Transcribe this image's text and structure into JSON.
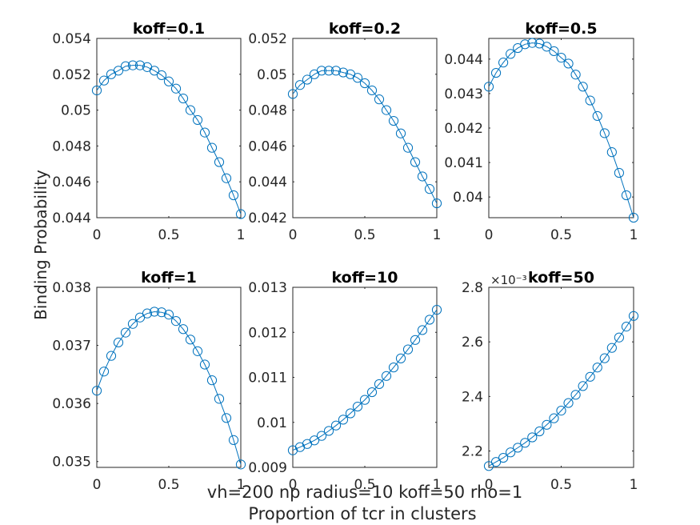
{
  "figure": {
    "ylabel": "Binding Probability",
    "xlabel_line1": "vh=200 np radius=10 koff=50 rho=1",
    "xlabel_line2": "Proportion of tcr in clusters"
  },
  "colors": {
    "series": "#0072BD",
    "marker": "#0072BD",
    "axes": "#262626"
  },
  "chart_data": [
    {
      "type": "line",
      "title": "koff=0.1",
      "xlim": [
        0,
        1
      ],
      "ylim": [
        0.044,
        0.054
      ],
      "xticks": [
        0,
        0.5,
        1
      ],
      "xtick_labels": [
        "0",
        "0.5",
        "1"
      ],
      "yticks": [
        0.044,
        0.046,
        0.048,
        0.05,
        0.052,
        0.054
      ],
      "ytick_labels": [
        "0.044",
        "0.046",
        "0.048",
        "0.05",
        "0.052",
        "0.054"
      ],
      "exponent_label": "",
      "x": [
        0,
        0.05,
        0.1,
        0.15,
        0.2,
        0.25,
        0.3,
        0.35,
        0.4,
        0.45,
        0.5,
        0.55,
        0.6,
        0.65,
        0.7,
        0.75,
        0.8,
        0.85,
        0.9,
        0.95,
        1
      ],
      "y": [
        0.0511,
        0.05165,
        0.052,
        0.0522,
        0.05245,
        0.0525,
        0.0525,
        0.0524,
        0.0522,
        0.05195,
        0.0516,
        0.0512,
        0.05065,
        0.05,
        0.04945,
        0.04875,
        0.0479,
        0.0471,
        0.0462,
        0.04525,
        0.0442
      ]
    },
    {
      "type": "line",
      "title": "koff=0.2",
      "xlim": [
        0,
        1
      ],
      "ylim": [
        0.042,
        0.052
      ],
      "xticks": [
        0,
        0.5,
        1
      ],
      "xtick_labels": [
        "0",
        "0.5",
        "1"
      ],
      "yticks": [
        0.042,
        0.044,
        0.046,
        0.048,
        0.05,
        0.052
      ],
      "ytick_labels": [
        "0.042",
        "0.044",
        "0.046",
        "0.048",
        "0.05",
        "0.052"
      ],
      "exponent_label": "",
      "x": [
        0,
        0.05,
        0.1,
        0.15,
        0.2,
        0.25,
        0.3,
        0.35,
        0.4,
        0.45,
        0.5,
        0.55,
        0.6,
        0.65,
        0.7,
        0.75,
        0.8,
        0.85,
        0.9,
        0.95,
        1
      ],
      "y": [
        0.0489,
        0.0494,
        0.0497,
        0.05,
        0.0502,
        0.0502,
        0.0502,
        0.0501,
        0.05,
        0.0498,
        0.0495,
        0.0491,
        0.0486,
        0.048,
        0.0474,
        0.0467,
        0.0459,
        0.0451,
        0.0443,
        0.0436,
        0.0428
      ]
    },
    {
      "type": "line",
      "title": "koff=0.5",
      "xlim": [
        0,
        1
      ],
      "ylim": [
        0.0394,
        0.0446
      ],
      "xticks": [
        0,
        0.5,
        1
      ],
      "xtick_labels": [
        "0",
        "0.5",
        "1"
      ],
      "yticks": [
        0.04,
        0.041,
        0.042,
        0.043,
        0.044
      ],
      "ytick_labels": [
        "0.04",
        "0.041",
        "0.042",
        "0.043",
        "0.044"
      ],
      "exponent_label": "",
      "x": [
        0,
        0.05,
        0.1,
        0.15,
        0.2,
        0.25,
        0.3,
        0.35,
        0.4,
        0.45,
        0.5,
        0.55,
        0.6,
        0.65,
        0.7,
        0.75,
        0.8,
        0.85,
        0.9,
        0.95,
        1
      ],
      "y": [
        0.0432,
        0.0436,
        0.0439,
        0.04415,
        0.04432,
        0.04443,
        0.04447,
        0.04445,
        0.04436,
        0.04423,
        0.04404,
        0.04387,
        0.04355,
        0.0432,
        0.0428,
        0.04235,
        0.04185,
        0.0413,
        0.0407,
        0.04005,
        0.0394
      ]
    },
    {
      "type": "line",
      "title": "koff=1",
      "xlim": [
        0,
        1
      ],
      "ylim": [
        0.0349,
        0.038
      ],
      "xticks": [
        0,
        0.5,
        1
      ],
      "xtick_labels": [
        "0",
        "0.5",
        "1"
      ],
      "yticks": [
        0.035,
        0.036,
        0.037,
        0.038
      ],
      "ytick_labels": [
        "0.035",
        "0.036",
        "0.037",
        "0.038"
      ],
      "exponent_label": "",
      "x": [
        0,
        0.05,
        0.1,
        0.15,
        0.2,
        0.25,
        0.3,
        0.35,
        0.4,
        0.45,
        0.5,
        0.55,
        0.6,
        0.65,
        0.7,
        0.75,
        0.8,
        0.85,
        0.9,
        0.95,
        1
      ],
      "y": [
        0.03622,
        0.03655,
        0.03682,
        0.03705,
        0.03722,
        0.03737,
        0.03748,
        0.03755,
        0.03758,
        0.03757,
        0.03753,
        0.03742,
        0.03728,
        0.0371,
        0.0369,
        0.03667,
        0.0364,
        0.03608,
        0.03575,
        0.03537,
        0.03495
      ]
    },
    {
      "type": "line",
      "title": "koff=10",
      "xlim": [
        0,
        1
      ],
      "ylim": [
        0.009,
        0.013
      ],
      "xticks": [
        0,
        0.5,
        1
      ],
      "xtick_labels": [
        "0",
        "0.5",
        "1"
      ],
      "yticks": [
        0.009,
        0.01,
        0.011,
        0.012,
        0.013
      ],
      "ytick_labels": [
        "0.009",
        "0.01",
        "0.011",
        "0.012",
        "0.013"
      ],
      "exponent_label": "",
      "x": [
        0,
        0.05,
        0.1,
        0.15,
        0.2,
        0.25,
        0.3,
        0.35,
        0.4,
        0.45,
        0.5,
        0.55,
        0.6,
        0.65,
        0.7,
        0.75,
        0.8,
        0.85,
        0.9,
        0.95,
        1
      ],
      "y": [
        0.00938,
        0.00945,
        0.00952,
        0.0096,
        0.0097,
        0.00981,
        0.00993,
        0.01006,
        0.0102,
        0.01035,
        0.0105,
        0.01067,
        0.01085,
        0.01103,
        0.01122,
        0.01142,
        0.01162,
        0.01183,
        0.01205,
        0.01228,
        0.0125
      ]
    },
    {
      "type": "line",
      "title": "koff=50",
      "xlim": [
        0,
        1
      ],
      "ylim": [
        2.14,
        2.8
      ],
      "xticks": [
        0,
        0.5,
        1
      ],
      "xtick_labels": [
        "0",
        "0.5",
        "1"
      ],
      "yticks": [
        2.2,
        2.4,
        2.6,
        2.8
      ],
      "ytick_labels": [
        "2.2",
        "2.4",
        "2.6",
        "2.8"
      ],
      "exponent_label": "×10⁻³",
      "x": [
        0,
        0.05,
        0.1,
        0.15,
        0.2,
        0.25,
        0.3,
        0.35,
        0.4,
        0.45,
        0.5,
        0.55,
        0.6,
        0.65,
        0.7,
        0.75,
        0.8,
        0.85,
        0.9,
        0.95,
        1
      ],
      "y": [
        2.145,
        2.16,
        2.175,
        2.195,
        2.212,
        2.23,
        2.25,
        2.272,
        2.296,
        2.32,
        2.348,
        2.376,
        2.406,
        2.438,
        2.472,
        2.506,
        2.54,
        2.578,
        2.616,
        2.656,
        2.695
      ]
    }
  ]
}
